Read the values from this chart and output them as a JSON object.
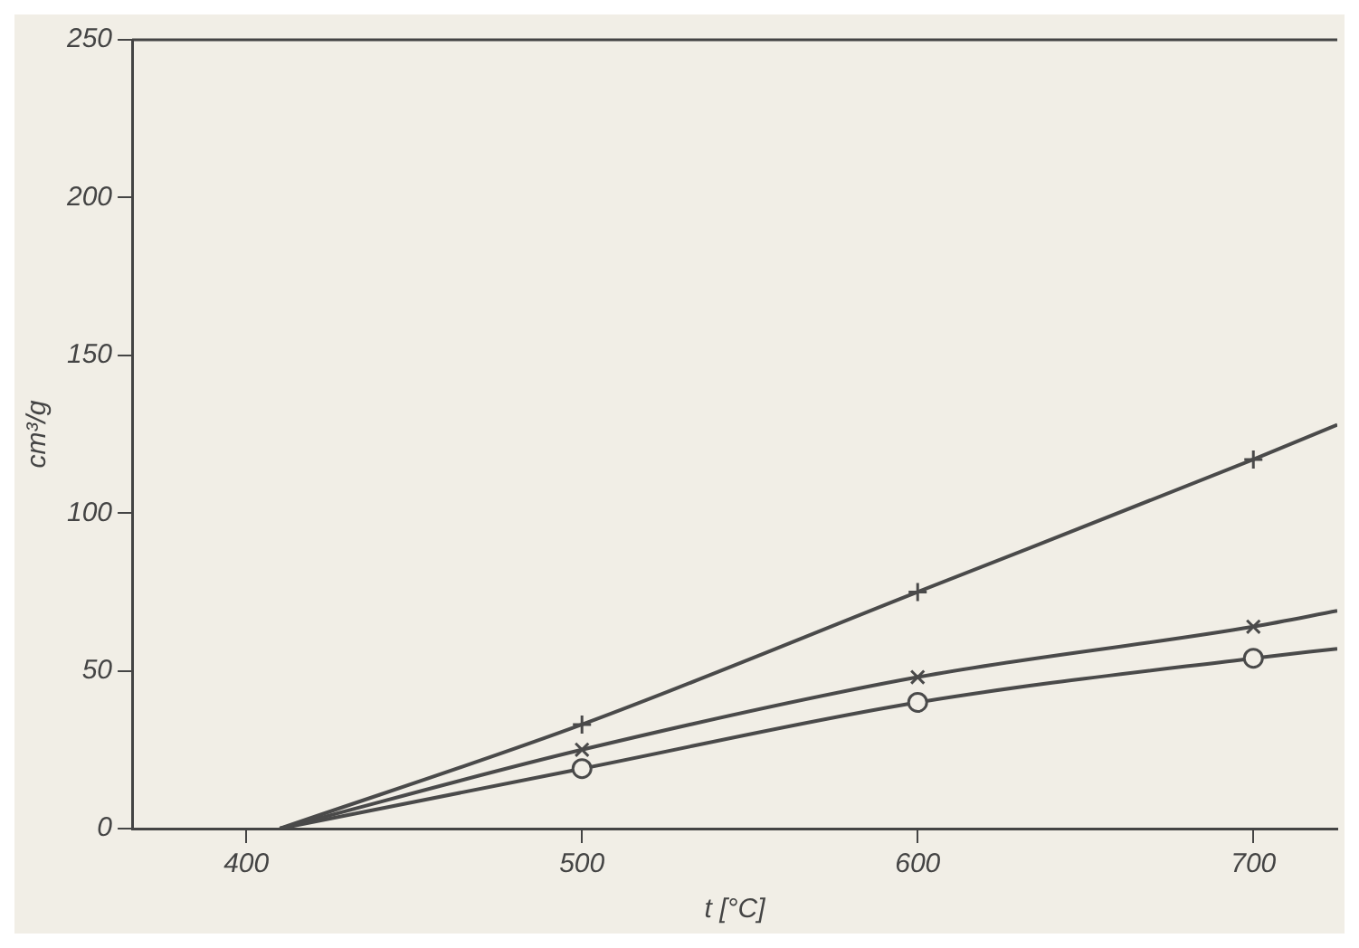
{
  "chart_data": {
    "type": "line",
    "xlabel": "t [°C]",
    "ylabel": "cm³/g",
    "xlim": [
      366,
      725
    ],
    "xticks": [
      400,
      500,
      600,
      700
    ],
    "ylim": [
      0,
      250
    ],
    "yticks": [
      0,
      50,
      100,
      150,
      200,
      250
    ],
    "grid": false,
    "legend": false,
    "line_style": "solid",
    "series": [
      {
        "color": "#4a4a4a",
        "marker": "cross",
        "x": [
          410,
          500,
          600,
          700,
          725
        ],
        "values": [
          0,
          33,
          75,
          117,
          128
        ]
      },
      {
        "color": "#4a4a4a",
        "marker": "x",
        "x": [
          410,
          500,
          600,
          700,
          725
        ],
        "values": [
          0,
          25,
          48,
          64,
          69
        ]
      },
      {
        "color": "#4a4a4a",
        "marker": "circle",
        "x": [
          410,
          500,
          600,
          700,
          725
        ],
        "values": [
          0,
          19,
          40,
          54,
          57
        ]
      }
    ]
  }
}
